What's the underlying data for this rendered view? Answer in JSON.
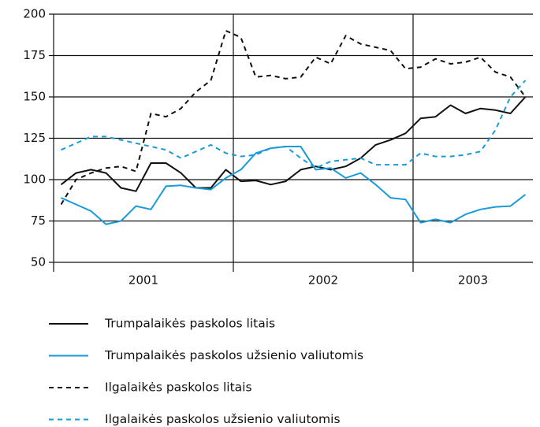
{
  "chart_data": {
    "type": "line",
    "categories": [
      null,
      null,
      null,
      null,
      null,
      null,
      "2001",
      null,
      null,
      null,
      null,
      null,
      null,
      null,
      null,
      null,
      null,
      null,
      "2002",
      null,
      null,
      null,
      null,
      null,
      null,
      null,
      null,
      null,
      "2003",
      null,
      null,
      null
    ],
    "series": [
      {
        "name": "Trumpalaikės paskolos litais",
        "color": "#111111",
        "dashed": false,
        "values": [
          97,
          104,
          106,
          104,
          95,
          93,
          110,
          110,
          104,
          95,
          95,
          106,
          99,
          99.5,
          97,
          99,
          106,
          108,
          106,
          108,
          113,
          121,
          124,
          128,
          137,
          138,
          145,
          140,
          143,
          142,
          140,
          150
        ]
      },
      {
        "name": "Trumpalaikės paskolos užsienio valiutomis",
        "color": "#1a9ad6",
        "dashed": false,
        "values": [
          89,
          85,
          81,
          73,
          75,
          84,
          82,
          96,
          96.5,
          95,
          94,
          101,
          106,
          116,
          119,
          120,
          120,
          106,
          107,
          101,
          104,
          97,
          89,
          88,
          74,
          76,
          74,
          79,
          82,
          83.5,
          84,
          91
        ]
      },
      {
        "name": "Ilgalaikės paskolos litais",
        "color": "#111111",
        "dashed": true,
        "values": [
          85,
          100,
          104,
          107,
          108,
          105,
          140,
          138,
          143,
          153,
          160,
          190,
          186,
          162,
          163,
          161,
          162,
          174,
          170,
          187,
          182,
          180,
          178,
          167,
          168,
          173,
          170,
          171,
          174,
          165,
          162,
          150
        ]
      },
      {
        "name": "Ilgalaikės paskolos užsienio valiutomis",
        "color": "#1a9ad6",
        "dashed": true,
        "values": [
          118,
          122,
          126,
          126,
          124,
          122,
          120,
          118,
          113,
          117,
          121,
          116,
          114,
          115,
          119,
          120,
          113,
          107,
          111,
          112,
          113,
          109,
          109,
          109,
          116,
          114,
          114,
          115,
          117,
          130,
          150,
          160
        ]
      }
    ],
    "ylim": [
      50,
      200
    ],
    "yticks": [
      50,
      75,
      100,
      125,
      150,
      175,
      200
    ],
    "grid": true,
    "legend": "bottom"
  }
}
